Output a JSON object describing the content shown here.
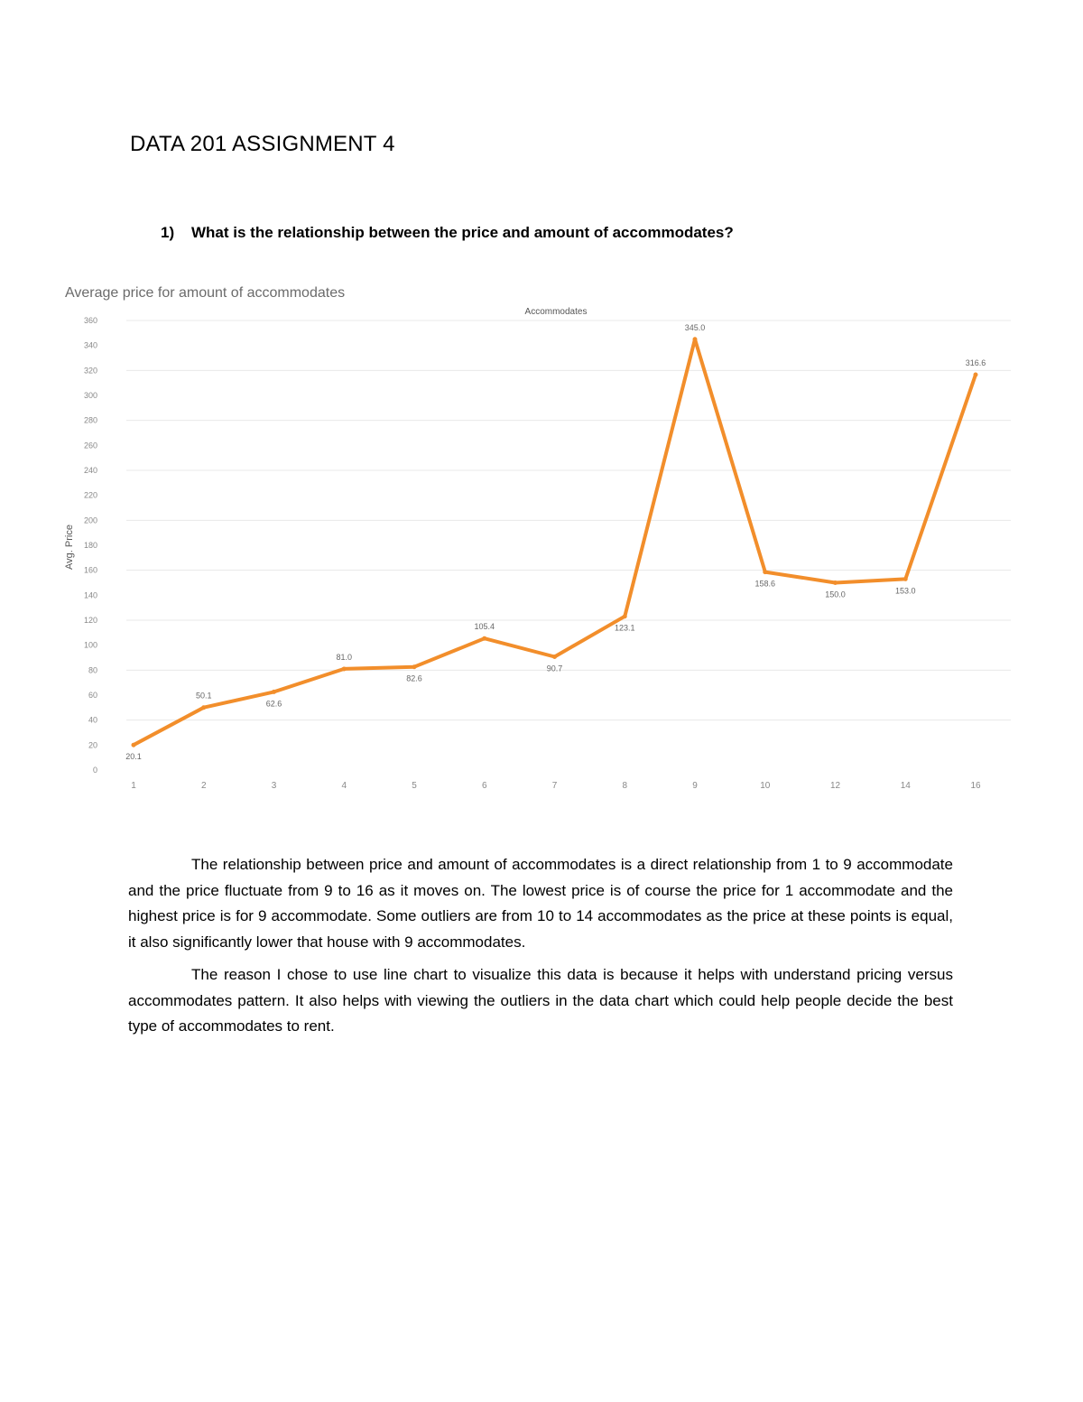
{
  "document": {
    "title": "DATA 201 ASSIGNMENT 4",
    "question_number": "1)",
    "question_text": "What is the relationship between the price and amount of accommodates?",
    "paragraphs": [
      "The relationship between price and amount of accommodates is a direct relationship from 1 to 9 accommodate and the price fluctuate from 9 to 16 as it moves on. The lowest price is of course the price for 1 accommodate and the highest price is for 9 accommodate. Some outliers are from 10 to 14 accommodates as the price at these points is equal, it also significantly lower that house with 9 accommodates.",
      "The reason I chose to use line chart to visualize this data is because it helps with understand pricing versus accommodates pattern. It also helps with viewing the outliers in the data chart which could help people decide the best type of accommodates to rent."
    ]
  },
  "chart_data": {
    "type": "line",
    "title": "Average price for amount of accommodates",
    "xlabel": "Accommodates",
    "ylabel": "Avg. Price",
    "categories": [
      "1",
      "2",
      "3",
      "4",
      "5",
      "6",
      "7",
      "8",
      "9",
      "10",
      "12",
      "14",
      "16"
    ],
    "series": [
      {
        "values": [
          20.1,
          50.1,
          62.6,
          81.0,
          82.6,
          105.4,
          90.7,
          123.1,
          345.0,
          158.6,
          150.0,
          153.0,
          316.6
        ],
        "labels": [
          "20.1",
          "50.1",
          "62.6",
          "81.0",
          "82.6",
          "105.4",
          "90.7",
          "123.1",
          "345.0",
          "158.6",
          "150.0",
          "153.0",
          "316.6"
        ],
        "color": "#f28e2b"
      }
    ],
    "yticks": [
      0,
      20,
      40,
      60,
      80,
      100,
      120,
      140,
      160,
      180,
      200,
      220,
      240,
      260,
      280,
      300,
      320,
      340,
      360
    ],
    "ylim": [
      0,
      360
    ],
    "grid": true,
    "legend": "none"
  }
}
